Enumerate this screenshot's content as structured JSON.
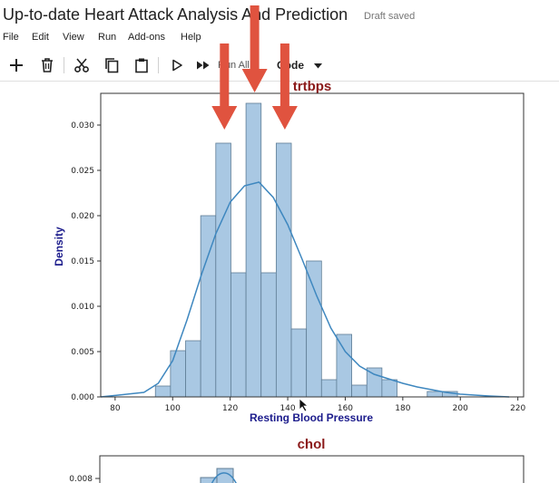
{
  "notebook": {
    "title": "Up-to-date Heart Attack Analysis And Prediction",
    "save_status": "Draft saved"
  },
  "menu": [
    "File",
    "Edit",
    "View",
    "Run",
    "Add-ons",
    "Help"
  ],
  "toolbar": {
    "icons": [
      "plus-icon",
      "trash-icon",
      "scissors-icon",
      "copy-icon",
      "paste-icon",
      "play-icon",
      "fast-forward-icon"
    ],
    "run_all_label": "Run All",
    "cell_type": "Code"
  },
  "colors": {
    "bar_fill": "#a9c8e3",
    "bar_edge": "#5f7d95",
    "kde_line": "#3e87bf",
    "chart_title": "#8b1a1a",
    "axis_label": "#1c1c8c",
    "arrow": "#e0533f"
  },
  "chart_data": [
    {
      "type": "bar",
      "title": "trtbps",
      "xlabel": "Resting Blood Pressure",
      "ylabel": "Density",
      "xlim": [
        75,
        222
      ],
      "ylim": [
        0,
        0.0335
      ],
      "xticks": [
        80,
        100,
        120,
        140,
        160,
        180,
        200,
        220
      ],
      "xtick_labels": [
        "80",
        "100",
        "120",
        "140",
        "160",
        "180",
        "200",
        "220"
      ],
      "yticks": [
        0,
        0.005,
        0.01,
        0.015,
        0.02,
        0.025,
        0.03
      ],
      "ytick_labels": [
        "0.000",
        "0.005",
        "0.010",
        "0.015",
        "0.020",
        "0.025",
        "0.030"
      ],
      "bin_edges": [
        94,
        99.25,
        104.5,
        109.75,
        115,
        120.25,
        125.5,
        130.75,
        136,
        141.25,
        146.5,
        151.75,
        157,
        162.25,
        167.5,
        172.75,
        178,
        183.25,
        188.5,
        193.75,
        199,
        204.25
      ],
      "values": [
        0.0012,
        0.0051,
        0.0062,
        0.02,
        0.028,
        0.0137,
        0.0324,
        0.0137,
        0.028,
        0.0075,
        0.015,
        0.0019,
        0.0069,
        0.0013,
        0.0032,
        0.0019,
        0,
        0,
        0.0006,
        0.0006,
        0
      ],
      "kde": {
        "x": [
          75,
          90,
          95,
          100,
          105,
          110,
          115,
          120,
          125,
          130,
          135,
          140,
          145,
          150,
          155,
          160,
          165,
          170,
          175,
          180,
          185,
          190,
          195,
          200,
          205,
          210,
          217
        ],
        "y": [
          0,
          0.0005,
          0.0015,
          0.004,
          0.0085,
          0.0135,
          0.018,
          0.0215,
          0.0233,
          0.0237,
          0.022,
          0.019,
          0.0152,
          0.0112,
          0.0076,
          0.005,
          0.0034,
          0.0025,
          0.002,
          0.0015,
          0.0011,
          0.0008,
          0.0005,
          0.0003,
          0.0002,
          0.0001,
          0
        ]
      },
      "annotations": [
        {
          "type": "arrow",
          "x": 118,
          "y": 0.0295
        },
        {
          "type": "arrow",
          "x": 128.5,
          "y": 0.0336
        },
        {
          "type": "arrow",
          "x": 139,
          "y": 0.0295
        }
      ]
    },
    {
      "type": "bar",
      "title": "chol",
      "ylabel": "",
      "yticks": [
        0.008
      ],
      "ytick_labels": [
        "0.008"
      ],
      "note": "partially visible, cut off at bottom"
    }
  ]
}
